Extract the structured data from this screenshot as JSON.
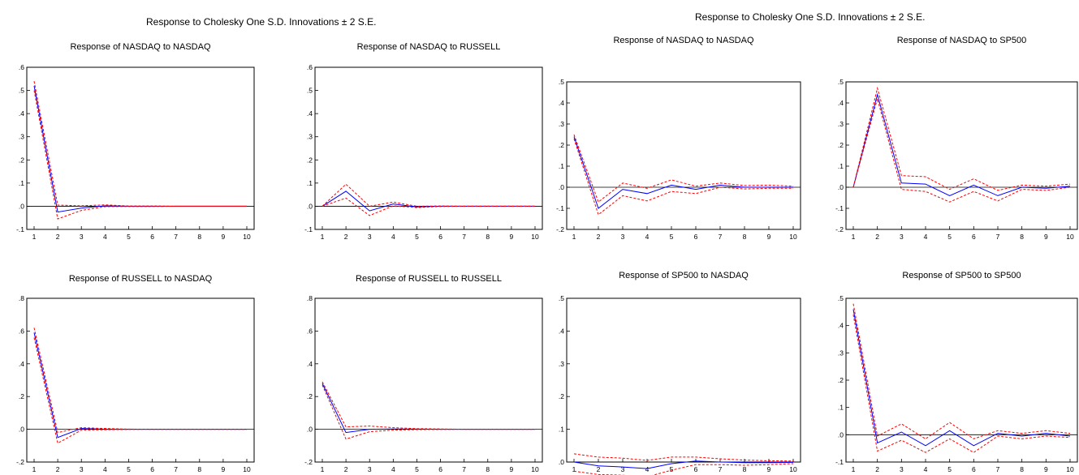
{
  "header": {
    "left_title": "Response to Cholesky One S.D. Innovations ± 2 S.E.",
    "right_title": "Response to Cholesky One S.D. Innovations ± 2 S.E."
  },
  "colors": {
    "response": "#0000ff",
    "bands": "#ff0000",
    "axis": "#000000"
  },
  "chart_data": [
    {
      "type": "line",
      "title": "Response of NASDAQ to NASDAQ",
      "x": [
        1,
        2,
        3,
        4,
        5,
        6,
        7,
        8,
        9,
        10
      ],
      "xlim": [
        1,
        10
      ],
      "ylim": [
        -0.1,
        0.6
      ],
      "yticks": [
        -0.1,
        0.0,
        0.1,
        0.2,
        0.3,
        0.4,
        0.5,
        0.6
      ],
      "ytick_labels": [
        "-.1",
        ".0",
        ".1",
        ".2",
        ".3",
        ".4",
        ".5",
        ".6"
      ],
      "series": [
        {
          "values": [
            0.52,
            -0.025,
            -0.008,
            0.002,
            0.0,
            0.0,
            0.0,
            0.0,
            0.0,
            0.0
          ]
        },
        {
          "values": [
            0.54,
            0.005,
            0.002,
            0.006,
            0.001,
            0.001,
            0.0,
            0.0,
            0.0,
            0.0
          ]
        },
        {
          "values": [
            0.5,
            -0.055,
            -0.018,
            -0.002,
            -0.001,
            -0.001,
            0.0,
            0.0,
            0.0,
            0.0
          ]
        }
      ]
    },
    {
      "type": "line",
      "title": "Response of NASDAQ to RUSSELL",
      "x": [
        1,
        2,
        3,
        4,
        5,
        6,
        7,
        8,
        9,
        10
      ],
      "xlim": [
        1,
        10
      ],
      "ylim": [
        -0.1,
        0.6
      ],
      "yticks": [
        -0.1,
        0.0,
        0.1,
        0.2,
        0.3,
        0.4,
        0.5,
        0.6
      ],
      "ytick_labels": [
        "-.1",
        ".0",
        ".1",
        ".2",
        ".3",
        ".4",
        ".5",
        ".6"
      ],
      "series": [
        {
          "values": [
            0.0,
            0.065,
            -0.02,
            0.01,
            -0.003,
            0.0,
            0.0,
            0.0,
            0.0,
            0.0
          ]
        },
        {
          "values": [
            0.0,
            0.095,
            0.0,
            0.018,
            0.0,
            0.001,
            0.0,
            0.0,
            0.0,
            0.0
          ]
        },
        {
          "values": [
            0.0,
            0.035,
            -0.04,
            0.002,
            -0.006,
            -0.001,
            0.0,
            0.0,
            0.0,
            0.0
          ]
        }
      ]
    },
    {
      "type": "line",
      "title": "Response of NASDAQ to NASDAQ",
      "x": [
        1,
        2,
        3,
        4,
        5,
        6,
        7,
        8,
        9,
        10
      ],
      "xlim": [
        1,
        10
      ],
      "ylim": [
        -0.2,
        0.5
      ],
      "yticks": [
        -0.2,
        -0.1,
        0.0,
        0.1,
        0.2,
        0.3,
        0.4,
        0.5
      ],
      "ytick_labels": [
        "-.2",
        "-.1",
        ".0",
        ".1",
        ".2",
        ".3",
        ".4",
        ".5"
      ],
      "series": [
        {
          "values": [
            0.24,
            -0.1,
            -0.01,
            -0.03,
            0.01,
            -0.01,
            0.01,
            0.0,
            0.0,
            0.0
          ]
        },
        {
          "values": [
            0.25,
            -0.07,
            0.02,
            -0.005,
            0.035,
            0.005,
            0.02,
            0.008,
            0.01,
            0.005
          ]
        },
        {
          "values": [
            0.23,
            -0.13,
            -0.04,
            -0.065,
            -0.02,
            -0.03,
            0.0,
            -0.008,
            -0.005,
            -0.005
          ]
        }
      ]
    },
    {
      "type": "line",
      "title": "Response of NASDAQ to SP500",
      "x": [
        1,
        2,
        3,
        4,
        5,
        6,
        7,
        8,
        9,
        10
      ],
      "xlim": [
        1,
        10
      ],
      "ylim": [
        -0.2,
        0.5
      ],
      "yticks": [
        -0.2,
        -0.1,
        0.0,
        0.1,
        0.2,
        0.3,
        0.4,
        0.5
      ],
      "ytick_labels": [
        "-.2",
        "-.1",
        ".0",
        ".1",
        ".2",
        ".3",
        ".4",
        ".5"
      ],
      "series": [
        {
          "values": [
            0.0,
            0.44,
            0.02,
            0.015,
            -0.04,
            0.01,
            -0.04,
            0.0,
            -0.005,
            0.005
          ]
        },
        {
          "values": [
            0.0,
            0.47,
            0.055,
            0.05,
            -0.01,
            0.04,
            -0.015,
            0.01,
            0.005,
            0.015
          ]
        },
        {
          "values": [
            0.0,
            0.42,
            -0.01,
            -0.02,
            -0.07,
            -0.02,
            -0.065,
            -0.01,
            -0.015,
            0.0
          ]
        }
      ]
    },
    {
      "type": "line",
      "title": "Response of RUSSELL to NASDAQ",
      "x": [
        1,
        2,
        3,
        4,
        5,
        6,
        7,
        8,
        9,
        10
      ],
      "xlim": [
        1,
        10
      ],
      "ylim": [
        -0.2,
        0.8
      ],
      "yticks": [
        -0.2,
        0.0,
        0.2,
        0.4,
        0.6,
        0.8
      ],
      "ytick_labels": [
        "-.2",
        ".0",
        ".2",
        ".4",
        ".6",
        ".8"
      ],
      "series": [
        {
          "values": [
            0.59,
            -0.05,
            0.005,
            0.0,
            0.0,
            0.0,
            0.0,
            0.0,
            0.0,
            0.0
          ]
        },
        {
          "values": [
            0.62,
            -0.02,
            0.01,
            0.005,
            0.001,
            0.0,
            0.0,
            0.0,
            0.0,
            0.0
          ]
        },
        {
          "values": [
            0.56,
            -0.085,
            -0.005,
            -0.003,
            -0.001,
            0.0,
            0.0,
            0.0,
            0.0,
            0.0
          ]
        }
      ]
    },
    {
      "type": "line",
      "title": "Response of RUSSELL to RUSSELL",
      "x": [
        1,
        2,
        3,
        4,
        5,
        6,
        7,
        8,
        9,
        10
      ],
      "xlim": [
        1,
        10
      ],
      "ylim": [
        -0.2,
        0.8
      ],
      "yticks": [
        -0.2,
        0.0,
        0.2,
        0.4,
        0.6,
        0.8
      ],
      "ytick_labels": [
        "-.2",
        ".0",
        ".2",
        ".4",
        ".6",
        ".8"
      ],
      "series": [
        {
          "values": [
            0.28,
            -0.02,
            0.0,
            0.002,
            0.001,
            0.0,
            0.0,
            0.0,
            0.0,
            0.0
          ]
        },
        {
          "values": [
            0.29,
            0.015,
            0.02,
            0.01,
            0.004,
            0.002,
            0.0,
            0.0,
            0.0,
            0.0
          ]
        },
        {
          "values": [
            0.27,
            -0.06,
            -0.015,
            -0.005,
            -0.002,
            -0.001,
            0.0,
            0.0,
            0.0,
            0.0
          ]
        }
      ]
    },
    {
      "type": "line",
      "title": "Response of SP500 to NASDAQ",
      "x": [
        1,
        2,
        3,
        4,
        5,
        6,
        7,
        8,
        9,
        10
      ],
      "xlim": [
        1,
        10
      ],
      "ylim": [
        0.0,
        0.5
      ],
      "yticks": [
        0.0,
        0.1,
        0.2,
        0.3,
        0.4,
        0.5
      ],
      "ytick_labels": [
        ".0",
        ".1",
        ".2",
        ".3",
        ".4",
        ".5"
      ],
      "series": [
        {
          "values": [
            0.0,
            -0.012,
            -0.015,
            -0.02,
            -0.005,
            0.003,
            0.0,
            -0.002,
            -0.002,
            -0.001
          ]
        },
        {
          "values": [
            0.025,
            0.015,
            0.012,
            0.005,
            0.015,
            0.015,
            0.01,
            0.006,
            0.004,
            0.003
          ]
        },
        {
          "values": [
            -0.028,
            -0.038,
            -0.04,
            -0.045,
            -0.025,
            -0.008,
            -0.008,
            -0.01,
            -0.008,
            -0.005
          ]
        }
      ]
    },
    {
      "type": "line",
      "title": "Response of SP500 to SP500",
      "x": [
        1,
        2,
        3,
        4,
        5,
        6,
        7,
        8,
        9,
        10
      ],
      "xlim": [
        1,
        10
      ],
      "ylim": [
        -0.1,
        0.5
      ],
      "yticks": [
        -0.1,
        0.0,
        0.1,
        0.2,
        0.3,
        0.4,
        0.5
      ],
      "ytick_labels": [
        "-.1",
        ".0",
        ".1",
        ".2",
        ".3",
        ".4",
        ".5"
      ],
      "series": [
        {
          "values": [
            0.46,
            -0.03,
            0.01,
            -0.04,
            0.015,
            -0.04,
            0.005,
            -0.005,
            0.005,
            -0.005
          ]
        },
        {
          "values": [
            0.48,
            -0.005,
            0.04,
            -0.015,
            0.045,
            -0.015,
            0.015,
            0.005,
            0.015,
            0.005
          ]
        },
        {
          "values": [
            0.44,
            -0.06,
            -0.02,
            -0.065,
            -0.015,
            -0.065,
            -0.005,
            -0.015,
            -0.005,
            -0.01
          ]
        }
      ]
    }
  ]
}
